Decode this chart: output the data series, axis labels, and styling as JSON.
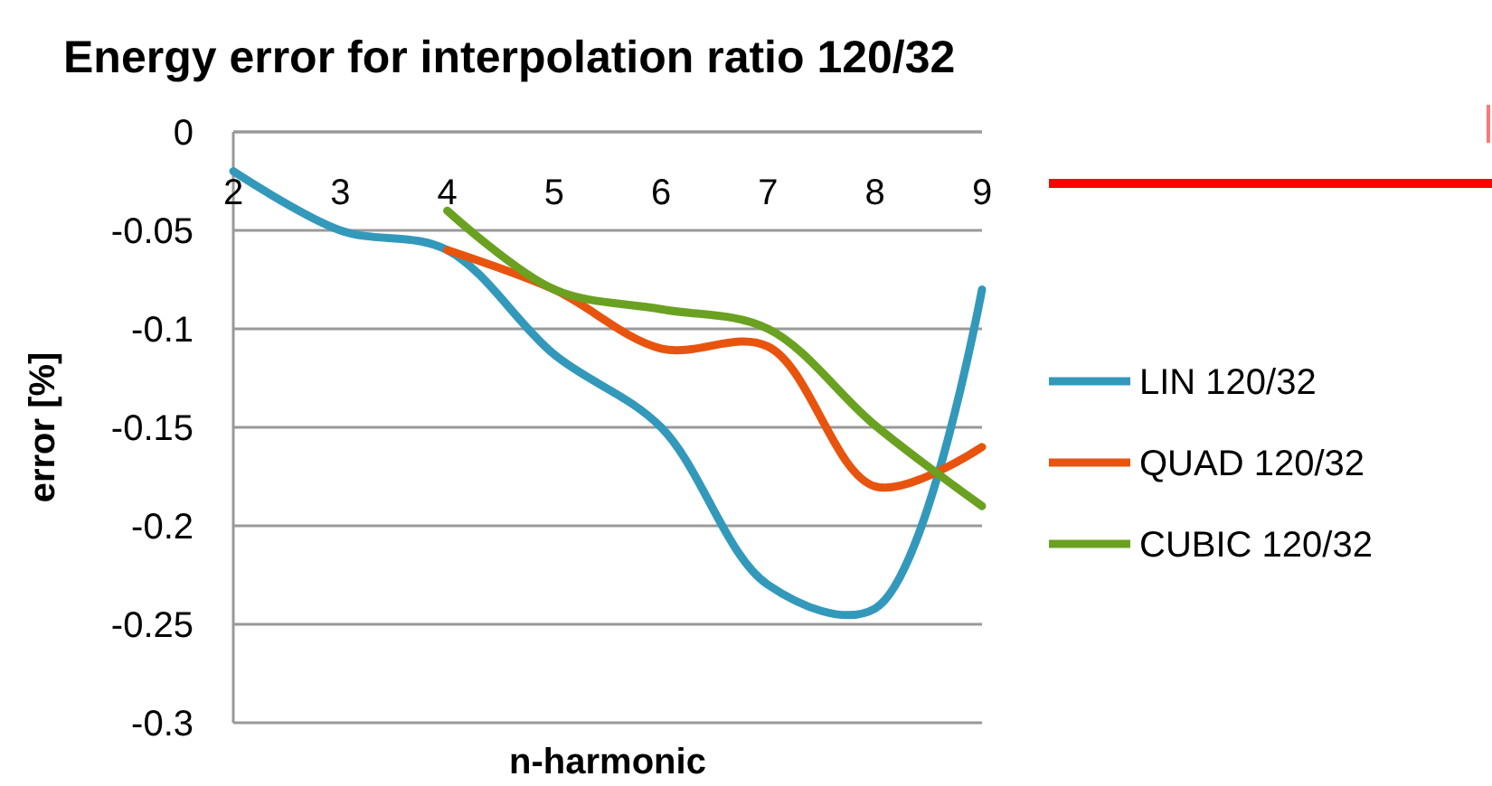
{
  "chart_data": {
    "type": "line",
    "title": "Energy error for interpolation ratio 120/32",
    "xlabel": "n-harmonic",
    "ylabel": "error [%]",
    "categories": [
      "2",
      "3",
      "4",
      "5",
      "6",
      "7",
      "8",
      "9"
    ],
    "series": [
      {
        "name": "LIN 120/32",
        "color": "#3399bb",
        "values": [
          -0.02,
          -0.05,
          -0.06,
          -0.113,
          -0.15,
          -0.23,
          -0.242,
          -0.08
        ]
      },
      {
        "name": "QUAD 120/32",
        "color": "#e8540e",
        "values": [
          null,
          null,
          -0.06,
          -0.08,
          -0.11,
          -0.109,
          -0.18,
          -0.16
        ]
      },
      {
        "name": "CUBIC 120/32",
        "color": "#6aa121",
        "values": [
          null,
          null,
          -0.04,
          -0.08,
          -0.09,
          -0.1,
          -0.149,
          -0.19
        ]
      }
    ],
    "ylim": [
      -0.3,
      0
    ],
    "yticks": [
      -0.3,
      -0.25,
      -0.2,
      -0.15,
      -0.1,
      -0.05,
      0
    ],
    "grid": "y",
    "legend": "right",
    "line_style": "solid"
  }
}
